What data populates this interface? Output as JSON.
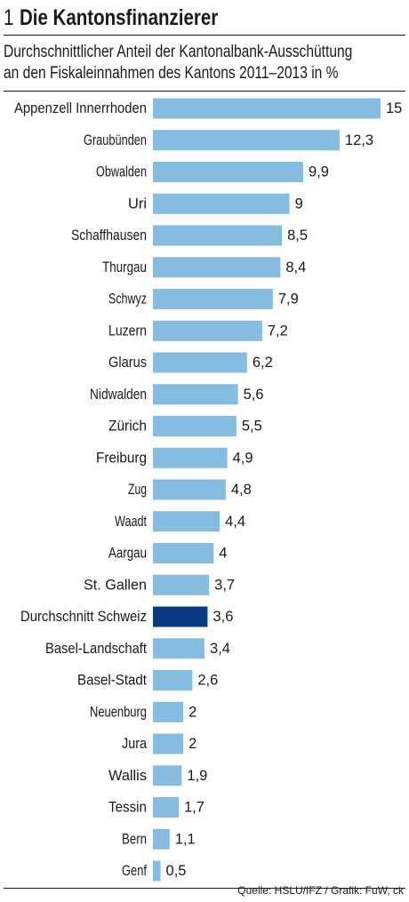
{
  "header": {
    "number": "1",
    "title": "Die Kantonsfinanzierer",
    "subtitle_line1": "Durchschnittlicher Anteil der Kantonalbank-Ausschüttung",
    "subtitle_line2": "an den Fiskaleinnahmen des Kantons 2011–2013 in %"
  },
  "source": "Quelle: HSLU/IFZ / Grafik: FuW, ck",
  "colors": {
    "bar": "#86bcdf",
    "highlight": "#0a3a82",
    "text": "#1a1a1a"
  },
  "chart_data": {
    "type": "bar",
    "orientation": "horizontal",
    "title": "Die Kantonsfinanzierer",
    "subtitle": "Durchschnittlicher Anteil der Kantonalbank-Ausschüttung an den Fiskaleinnahmen des Kantons 2011–2013 in %",
    "xlabel": "",
    "ylabel": "",
    "xlim": [
      0,
      15
    ],
    "grid": false,
    "highlight": "Durchschnitt Schweiz",
    "categories": [
      "Appenzell Innerrhoden",
      "Graubünden",
      "Obwalden",
      "Uri",
      "Schaffhausen",
      "Thurgau",
      "Schwyz",
      "Luzern",
      "Glarus",
      "Nidwalden",
      "Zürich",
      "Freiburg",
      "Zug",
      "Waadt",
      "Aargau",
      "St. Gallen",
      "Durchschnitt Schweiz",
      "Basel-Landschaft",
      "Basel-Stadt",
      "Neuenburg",
      "Jura",
      "Wallis",
      "Tessin",
      "Bern",
      "Genf"
    ],
    "values": [
      15,
      12.3,
      9.9,
      9,
      8.5,
      8.4,
      7.9,
      7.2,
      6.2,
      5.6,
      5.5,
      4.9,
      4.8,
      4.4,
      4,
      3.7,
      3.6,
      3.4,
      2.6,
      2,
      2,
      1.9,
      1.7,
      1.1,
      0.5
    ],
    "value_labels": [
      "15",
      "12,3",
      "9,9",
      "9",
      "8,5",
      "8,4",
      "7,9",
      "7,2",
      "6,2",
      "5,6",
      "5,5",
      "4,9",
      "4,8",
      "4,4",
      "4",
      "3,7",
      "3,6",
      "3,4",
      "2,6",
      "2",
      "2",
      "1,9",
      "1,7",
      "1,1",
      "0,5"
    ]
  }
}
